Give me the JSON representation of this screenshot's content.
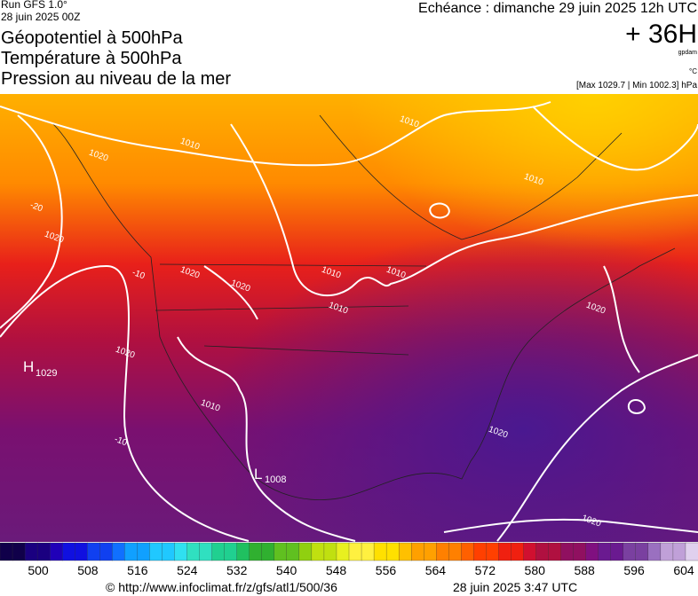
{
  "header": {
    "run": "Run GFS 1.0°",
    "run_date": "28 juin 2025 00Z",
    "titles": [
      "Géopotentiel à 500hPa",
      "Température à 500hPa",
      "Pression au niveau de la mer"
    ],
    "echeance": "Echéance : dimanche 29 juin 2025 12h UTC",
    "lead": "+ 36H",
    "unit_geo": "gpdam",
    "unit_temp": "°C",
    "extremes": "[Max 1029.7 | Min 1002.3] hPa"
  },
  "map": {
    "high": {
      "letter": "H",
      "value": "1029"
    },
    "low": {
      "letter": "L",
      "value": "1008"
    },
    "isobar_labels": [
      "1010",
      "1020",
      "1010",
      "1020",
      "1010",
      "1020",
      "1010",
      "1010",
      "1010",
      "1020",
      "1020",
      "1020",
      "1020",
      "1020",
      "1010",
      "-20",
      "-10",
      "-10"
    ]
  },
  "colorbar": {
    "labels": [
      500,
      508,
      516,
      524,
      532,
      540,
      548,
      556,
      564,
      572,
      580,
      588,
      596,
      604
    ]
  },
  "footer": {
    "source": "© http://www.infoclimat.fr/z/gfs/atl1/500/36",
    "generated": "28 juin 2025  3:47 UTC"
  }
}
